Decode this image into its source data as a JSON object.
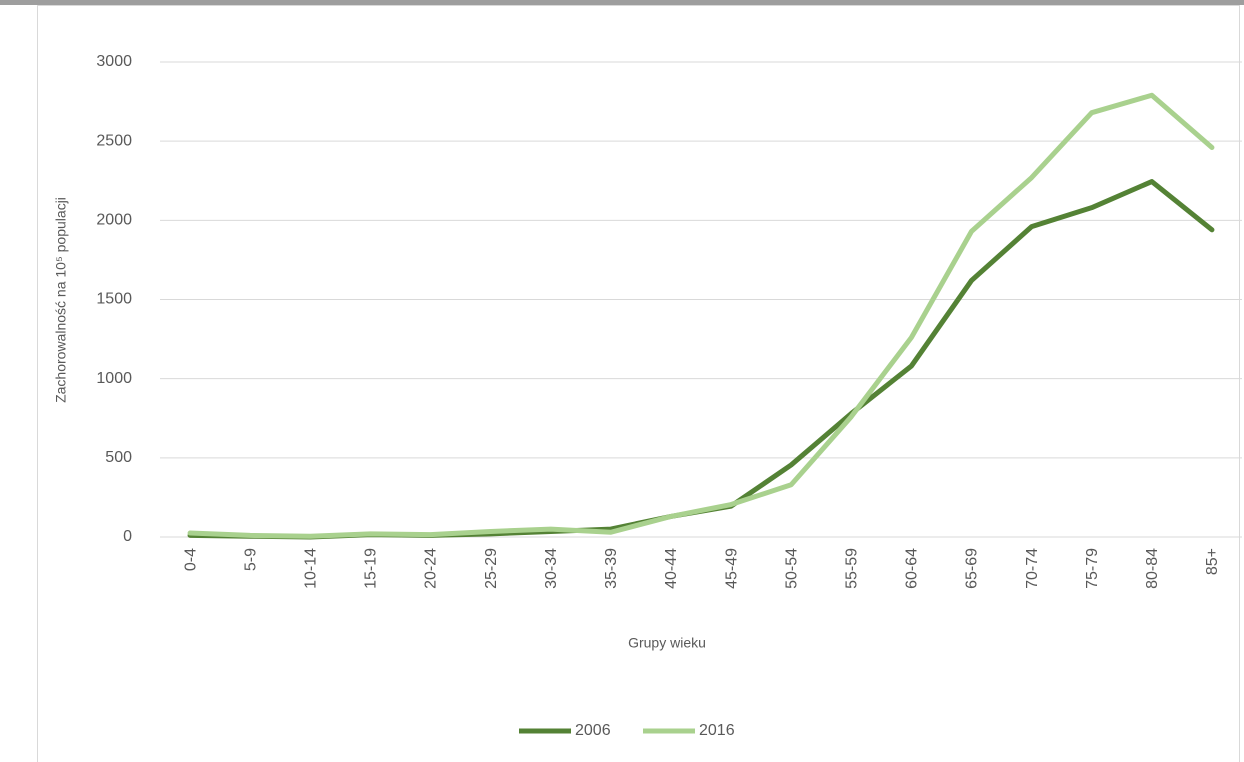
{
  "chart_data": {
    "type": "line",
    "y_label": "Zachorowalność na 10⁵ populacji",
    "x_label": "Grupy wieku",
    "categories": [
      "0-4",
      "5-9",
      "10-14",
      "15-19",
      "20-24",
      "25-29",
      "30-34",
      "35-39",
      "40-44",
      "45-49",
      "50-54",
      "55-59",
      "60-64",
      "65-69",
      "70-74",
      "75-79",
      "80-84",
      "85+"
    ],
    "series": [
      {
        "name": "2006",
        "color": "#548235",
        "values": [
          10,
          5,
          0,
          15,
          10,
          20,
          35,
          50,
          130,
          195,
          455,
          780,
          1080,
          1620,
          1960,
          2080,
          2245,
          1940
        ]
      },
      {
        "name": "2016",
        "color": "#a9d18e",
        "values": [
          25,
          10,
          5,
          20,
          15,
          35,
          50,
          30,
          130,
          205,
          330,
          760,
          1260,
          1930,
          2270,
          2680,
          2790,
          2460
        ]
      }
    ],
    "ylim": [
      0,
      3000
    ],
    "yticks": [
      0,
      500,
      1000,
      1500,
      2000,
      2500,
      3000
    ],
    "grid": true,
    "legend": "bottom"
  }
}
